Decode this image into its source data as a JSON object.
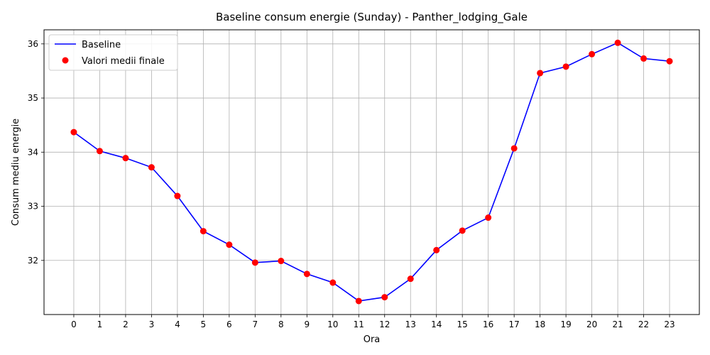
{
  "chart_data": {
    "type": "line",
    "title": "Baseline consum energie (Sunday) - Panther_lodging_Gale",
    "xlabel": "Ora",
    "ylabel": "Consum mediu energie",
    "x": [
      0,
      1,
      2,
      3,
      4,
      5,
      6,
      7,
      8,
      9,
      10,
      11,
      12,
      13,
      14,
      15,
      16,
      17,
      18,
      19,
      20,
      21,
      22,
      23
    ],
    "x_tick_labels": [
      "0",
      "1",
      "2",
      "3",
      "4",
      "5",
      "6",
      "7",
      "8",
      "9",
      "10",
      "11",
      "12",
      "13",
      "14",
      "15",
      "16",
      "17",
      "18",
      "19",
      "20",
      "21",
      "22",
      "23"
    ],
    "y_ticks": [
      32,
      33,
      34,
      35,
      36
    ],
    "y_tick_labels": [
      "32",
      "33",
      "34",
      "35",
      "36"
    ],
    "xlim": [
      -1.15,
      24.15
    ],
    "ylim": [
      31.0,
      36.26
    ],
    "grid": true,
    "legend_position": "top-left",
    "series": [
      {
        "name": "Baseline",
        "kind": "line",
        "color": "#0000ff",
        "values": [
          34.37,
          34.02,
          33.89,
          33.72,
          33.19,
          32.54,
          32.29,
          31.96,
          31.99,
          31.75,
          31.59,
          31.25,
          31.32,
          31.66,
          32.19,
          32.55,
          32.79,
          34.07,
          35.46,
          35.58,
          35.81,
          36.02,
          35.73,
          35.68
        ]
      },
      {
        "name": "Valori medii finale",
        "kind": "scatter",
        "color": "#ff0000",
        "values": [
          34.37,
          34.02,
          33.89,
          33.72,
          33.19,
          32.54,
          32.29,
          31.96,
          31.99,
          31.75,
          31.59,
          31.25,
          31.32,
          31.66,
          32.19,
          32.55,
          32.79,
          34.07,
          35.46,
          35.58,
          35.81,
          36.02,
          35.73,
          35.68
        ]
      }
    ]
  }
}
